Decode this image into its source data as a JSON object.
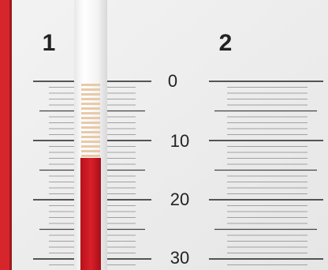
{
  "columns": [
    {
      "label": "1"
    },
    {
      "label": "2"
    }
  ],
  "scale": {
    "labels": [
      "0",
      "10",
      "20",
      "30"
    ]
  }
}
